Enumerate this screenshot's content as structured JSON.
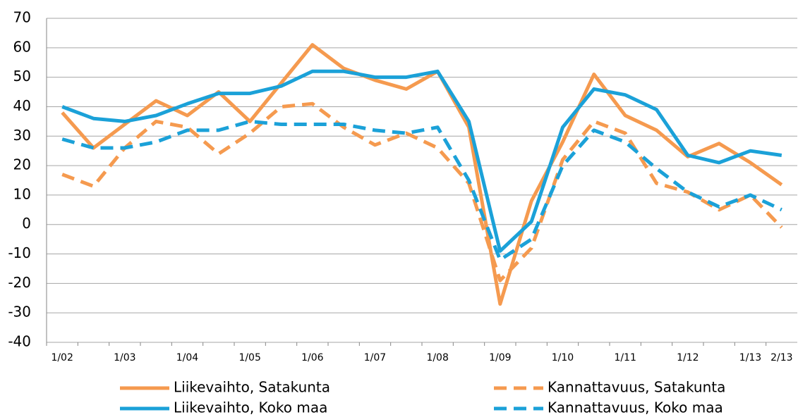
{
  "chart_data": {
    "type": "line",
    "categories": [
      "1/02",
      null,
      "1/03",
      null,
      "1/04",
      null,
      "1/05",
      null,
      "1/06",
      null,
      "1/07",
      null,
      "1/08",
      null,
      "1/09",
      null,
      "1/10",
      null,
      "1/11",
      null,
      "1/12",
      null,
      "1/13",
      "2/13"
    ],
    "series": [
      {
        "name": "Liikevaihto, Satakunta",
        "color": "#f59a4f",
        "dashed": false,
        "values": [
          38,
          26,
          34,
          42,
          37,
          45,
          35,
          48,
          61,
          53,
          49,
          46,
          52,
          33,
          -27,
          8,
          28,
          51,
          37,
          32,
          23,
          27.5,
          21,
          13.5
        ]
      },
      {
        "name": "Kannattavuus, Satakunta",
        "color": "#f59a4f",
        "dashed": true,
        "values": [
          17,
          13,
          26,
          35,
          33,
          24,
          31,
          40,
          41,
          33,
          27,
          31,
          26,
          14,
          -19,
          -8,
          22,
          35,
          31,
          14,
          11,
          5,
          10,
          -1
        ]
      },
      {
        "name": "Liikevaihto, Koko maa",
        "color": "#1ba1d8",
        "dashed": false,
        "values": [
          40,
          36,
          35,
          37,
          41,
          44.5,
          44.5,
          47,
          52,
          52,
          50,
          50,
          52,
          35,
          -9,
          1,
          33,
          46,
          44,
          39,
          23.5,
          21,
          25,
          23.5
        ]
      },
      {
        "name": "Kannattavuus, Koko maa",
        "color": "#1ba1d8",
        "dashed": true,
        "values": [
          29,
          26,
          26,
          28,
          32,
          32,
          35,
          34,
          34,
          34,
          32,
          31,
          33,
          15,
          -12,
          -5,
          20,
          32,
          28,
          19,
          11,
          6,
          10,
          5
        ]
      }
    ],
    "ylim": [
      -40,
      70
    ],
    "yticks": [
      -40,
      -30,
      -20,
      -10,
      0,
      10,
      20,
      30,
      40,
      50,
      60,
      70
    ],
    "grid": true,
    "legend": "bottom"
  }
}
